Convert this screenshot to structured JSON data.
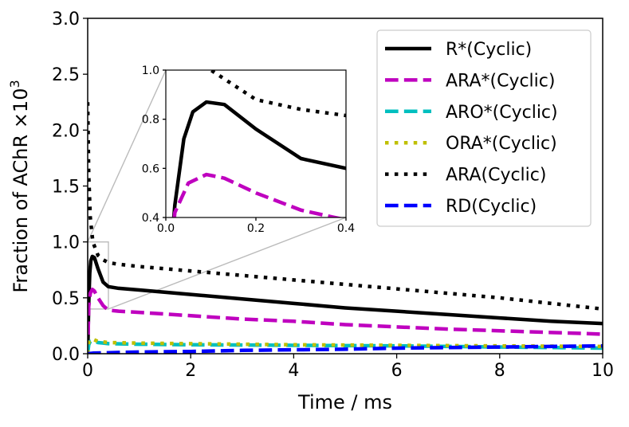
{
  "chart_data": {
    "type": "line",
    "xlabel": "Time / ms",
    "ylabel": "Fraction of AChR ×10",
    "ylabel_exponent": "3",
    "xlim": [
      0,
      10
    ],
    "ylim": [
      0,
      3.0
    ],
    "xticks": [
      "0",
      "2",
      "4",
      "6",
      "8",
      "10"
    ],
    "yticks": [
      "0.0",
      "0.5",
      "1.0",
      "1.5",
      "2.0",
      "2.5",
      "3.0"
    ],
    "legend_position": "top-right",
    "series": [
      {
        "name": "R*(Cyclic)",
        "color": "#000000",
        "style": "solid",
        "points": [
          [
            0,
            0
          ],
          [
            0.02,
            0.45
          ],
          [
            0.04,
            0.72
          ],
          [
            0.06,
            0.83
          ],
          [
            0.09,
            0.87
          ],
          [
            0.13,
            0.86
          ],
          [
            0.2,
            0.76
          ],
          [
            0.3,
            0.64
          ],
          [
            0.4,
            0.6
          ],
          [
            0.6,
            0.585
          ],
          [
            1,
            0.57
          ],
          [
            2,
            0.53
          ],
          [
            3,
            0.49
          ],
          [
            4,
            0.45
          ],
          [
            5,
            0.41
          ],
          [
            6,
            0.38
          ],
          [
            7,
            0.35
          ],
          [
            8,
            0.32
          ],
          [
            9,
            0.29
          ],
          [
            10,
            0.27
          ]
        ]
      },
      {
        "name": "ARA*(Cyclic)",
        "color": "#bf00bf",
        "style": "dashed",
        "points": [
          [
            0,
            0
          ],
          [
            0.02,
            0.42
          ],
          [
            0.05,
            0.54
          ],
          [
            0.09,
            0.575
          ],
          [
            0.13,
            0.56
          ],
          [
            0.2,
            0.5
          ],
          [
            0.3,
            0.43
          ],
          [
            0.4,
            0.39
          ],
          [
            0.6,
            0.38
          ],
          [
            1,
            0.37
          ],
          [
            2,
            0.34
          ],
          [
            3,
            0.31
          ],
          [
            4,
            0.29
          ],
          [
            5,
            0.26
          ],
          [
            6,
            0.24
          ],
          [
            7,
            0.22
          ],
          [
            8,
            0.205
          ],
          [
            9,
            0.19
          ],
          [
            10,
            0.175
          ]
        ]
      },
      {
        "name": "ARO*(Cyclic)",
        "color": "#00bfbf",
        "style": "dashed",
        "points": [
          [
            0,
            0
          ],
          [
            0.02,
            0.08
          ],
          [
            0.05,
            0.11
          ],
          [
            0.1,
            0.115
          ],
          [
            0.2,
            0.1
          ],
          [
            0.4,
            0.09
          ],
          [
            1,
            0.085
          ],
          [
            2,
            0.08
          ],
          [
            4,
            0.075
          ],
          [
            6,
            0.07
          ],
          [
            8,
            0.06
          ],
          [
            10,
            0.05
          ]
        ]
      },
      {
        "name": "ORA*(Cyclic)",
        "color": "#bfbf00",
        "style": "dotted",
        "points": [
          [
            0,
            0
          ],
          [
            0.02,
            0.1
          ],
          [
            0.05,
            0.13
          ],
          [
            0.1,
            0.13
          ],
          [
            0.2,
            0.11
          ],
          [
            0.4,
            0.1
          ],
          [
            1,
            0.095
          ],
          [
            2,
            0.09
          ],
          [
            4,
            0.08
          ],
          [
            6,
            0.075
          ],
          [
            8,
            0.07
          ],
          [
            10,
            0.065
          ]
        ]
      },
      {
        "name": "ARA(Cyclic)",
        "color": "#000000",
        "style": "dotted",
        "points": [
          [
            0.0,
            2.25
          ],
          [
            0.02,
            1.6
          ],
          [
            0.05,
            1.22
          ],
          [
            0.1,
            1.0
          ],
          [
            0.2,
            0.88
          ],
          [
            0.3,
            0.84
          ],
          [
            0.4,
            0.815
          ],
          [
            0.6,
            0.8
          ],
          [
            1,
            0.78
          ],
          [
            2,
            0.74
          ],
          [
            3,
            0.7
          ],
          [
            4,
            0.66
          ],
          [
            5,
            0.62
          ],
          [
            6,
            0.58
          ],
          [
            7,
            0.54
          ],
          [
            8,
            0.5
          ],
          [
            9,
            0.45
          ],
          [
            10,
            0.4
          ]
        ]
      },
      {
        "name": "RD(Cyclic)",
        "color": "#0000ff",
        "style": "dashed",
        "points": [
          [
            0,
            0
          ],
          [
            0.1,
            0.005
          ],
          [
            0.5,
            0.01
          ],
          [
            1,
            0.015
          ],
          [
            2,
            0.02
          ],
          [
            3,
            0.03
          ],
          [
            4,
            0.035
          ],
          [
            5,
            0.04
          ],
          [
            6,
            0.05
          ],
          [
            7,
            0.055
          ],
          [
            8,
            0.06
          ],
          [
            9,
            0.065
          ],
          [
            10,
            0.07
          ]
        ]
      }
    ],
    "inset": {
      "xlim": [
        0,
        0.4
      ],
      "ylim": [
        0.4,
        1.0
      ],
      "xticks": [
        "0.0",
        "0.2",
        "0.4"
      ],
      "yticks": [
        "0.4",
        "0.6",
        "0.8",
        "1.0"
      ]
    }
  }
}
